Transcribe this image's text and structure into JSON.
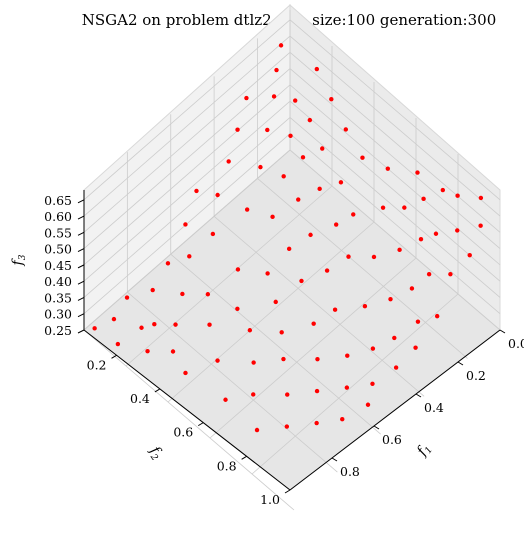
{
  "chart_data": {
    "type": "scatter",
    "projection": "3d",
    "title": "NSGA2 on problem dtlz2 pop_size:100 generation:300",
    "xlabel": "f",
    "xlabel_sub": "1",
    "ylabel": "f",
    "ylabel_sub": "2",
    "zlabel": "f",
    "zlabel_sub": "3",
    "xlim": [
      0.0,
      1.0
    ],
    "ylim": [
      0.05,
      1.0
    ],
    "zlim": [
      0.25,
      0.68
    ],
    "xticks": [
      "0.0",
      "0.2",
      "0.4",
      "0.6",
      "0.8"
    ],
    "xtick_values": [
      0.0,
      0.2,
      0.4,
      0.6,
      0.8
    ],
    "yticks": [
      "0.2",
      "0.4",
      "0.6",
      "0.8",
      "1.0"
    ],
    "ytick_values": [
      0.2,
      0.4,
      0.6,
      0.8,
      1.0
    ],
    "zticks": [
      "0.25",
      "0.30",
      "0.35",
      "0.40",
      "0.45",
      "0.50",
      "0.55",
      "0.60",
      "0.65"
    ],
    "ztick_values": [
      0.25,
      0.3,
      0.35,
      0.4,
      0.45,
      0.5,
      0.55,
      0.6,
      0.65
    ],
    "grid": true,
    "marker_color": "#ff0000",
    "pane_color": "#f2f2f2",
    "grid_color": "#cccccc",
    "points": [
      [
        0.03,
        0.98,
        0.26
      ],
      [
        0.06,
        0.92,
        0.27
      ],
      [
        0.05,
        0.85,
        0.29
      ],
      [
        0.12,
        0.96,
        0.25
      ],
      [
        0.15,
        0.88,
        0.27
      ],
      [
        0.1,
        0.78,
        0.3
      ],
      [
        0.09,
        0.7,
        0.33
      ],
      [
        0.18,
        0.85,
        0.28
      ],
      [
        0.22,
        0.92,
        0.26
      ],
      [
        0.14,
        0.65,
        0.35
      ],
      [
        0.07,
        0.6,
        0.38
      ],
      [
        0.04,
        0.52,
        0.42
      ],
      [
        0.2,
        0.74,
        0.32
      ],
      [
        0.25,
        0.82,
        0.3
      ],
      [
        0.28,
        0.7,
        0.34
      ],
      [
        0.18,
        0.58,
        0.4
      ],
      [
        0.12,
        0.5,
        0.44
      ],
      [
        0.09,
        0.42,
        0.48
      ],
      [
        0.06,
        0.35,
        0.52
      ],
      [
        0.03,
        0.28,
        0.56
      ],
      [
        0.3,
        0.88,
        0.28
      ],
      [
        0.32,
        0.6,
        0.38
      ],
      [
        0.35,
        0.76,
        0.32
      ],
      [
        0.24,
        0.48,
        0.45
      ],
      [
        0.2,
        0.38,
        0.5
      ],
      [
        0.15,
        0.3,
        0.54
      ],
      [
        0.11,
        0.23,
        0.58
      ],
      [
        0.07,
        0.18,
        0.61
      ],
      [
        0.04,
        0.13,
        0.64
      ],
      [
        0.38,
        0.9,
        0.27
      ],
      [
        0.4,
        0.68,
        0.35
      ],
      [
        0.42,
        0.56,
        0.4
      ],
      [
        0.33,
        0.45,
        0.46
      ],
      [
        0.29,
        0.36,
        0.51
      ],
      [
        0.24,
        0.28,
        0.56
      ],
      [
        0.19,
        0.21,
        0.6
      ],
      [
        0.45,
        0.82,
        0.3
      ],
      [
        0.48,
        0.7,
        0.34
      ],
      [
        0.5,
        0.6,
        0.38
      ],
      [
        0.44,
        0.48,
        0.44
      ],
      [
        0.38,
        0.38,
        0.5
      ],
      [
        0.32,
        0.3,
        0.55
      ],
      [
        0.27,
        0.22,
        0.59
      ],
      [
        0.55,
        0.88,
        0.27
      ],
      [
        0.56,
        0.76,
        0.32
      ],
      [
        0.58,
        0.65,
        0.36
      ],
      [
        0.54,
        0.52,
        0.42
      ],
      [
        0.48,
        0.42,
        0.47
      ],
      [
        0.42,
        0.32,
        0.52
      ],
      [
        0.36,
        0.25,
        0.57
      ],
      [
        0.62,
        0.82,
        0.29
      ],
      [
        0.64,
        0.7,
        0.34
      ],
      [
        0.66,
        0.58,
        0.39
      ],
      [
        0.6,
        0.46,
        0.45
      ],
      [
        0.54,
        0.36,
        0.5
      ],
      [
        0.48,
        0.28,
        0.55
      ],
      [
        0.7,
        0.88,
        0.26
      ],
      [
        0.72,
        0.76,
        0.31
      ],
      [
        0.74,
        0.64,
        0.36
      ],
      [
        0.7,
        0.52,
        0.42
      ],
      [
        0.64,
        0.4,
        0.48
      ],
      [
        0.58,
        0.32,
        0.53
      ],
      [
        0.78,
        0.82,
        0.28
      ],
      [
        0.8,
        0.7,
        0.33
      ],
      [
        0.82,
        0.58,
        0.38
      ],
      [
        0.78,
        0.46,
        0.44
      ],
      [
        0.72,
        0.36,
        0.5
      ],
      [
        0.66,
        0.26,
        0.56
      ],
      [
        0.86,
        0.76,
        0.3
      ],
      [
        0.88,
        0.64,
        0.35
      ],
      [
        0.88,
        0.52,
        0.4
      ],
      [
        0.84,
        0.4,
        0.46
      ],
      [
        0.78,
        0.3,
        0.52
      ],
      [
        0.72,
        0.22,
        0.57
      ],
      [
        0.92,
        0.7,
        0.31
      ],
      [
        0.94,
        0.58,
        0.36
      ],
      [
        0.92,
        0.46,
        0.42
      ],
      [
        0.88,
        0.34,
        0.48
      ],
      [
        0.82,
        0.24,
        0.54
      ],
      [
        0.76,
        0.17,
        0.59
      ],
      [
        0.96,
        0.62,
        0.33
      ],
      [
        0.97,
        0.5,
        0.38
      ],
      [
        0.95,
        0.38,
        0.44
      ],
      [
        0.9,
        0.28,
        0.5
      ],
      [
        0.85,
        0.2,
        0.55
      ],
      [
        0.98,
        0.42,
        0.4
      ],
      [
        0.99,
        0.33,
        0.45
      ],
      [
        0.96,
        0.24,
        0.51
      ],
      [
        0.91,
        0.16,
        0.57
      ],
      [
        0.86,
        0.11,
        0.62
      ],
      [
        0.99,
        0.18,
        0.55
      ],
      [
        0.98,
        0.12,
        0.6
      ],
      [
        0.94,
        0.08,
        0.64
      ],
      [
        0.8,
        0.12,
        0.61
      ],
      [
        0.7,
        0.14,
        0.62
      ],
      [
        0.6,
        0.18,
        0.6
      ],
      [
        0.5,
        0.2,
        0.59
      ],
      [
        0.4,
        0.18,
        0.61
      ],
      [
        0.3,
        0.15,
        0.63
      ],
      [
        0.2,
        0.12,
        0.65
      ]
    ]
  }
}
